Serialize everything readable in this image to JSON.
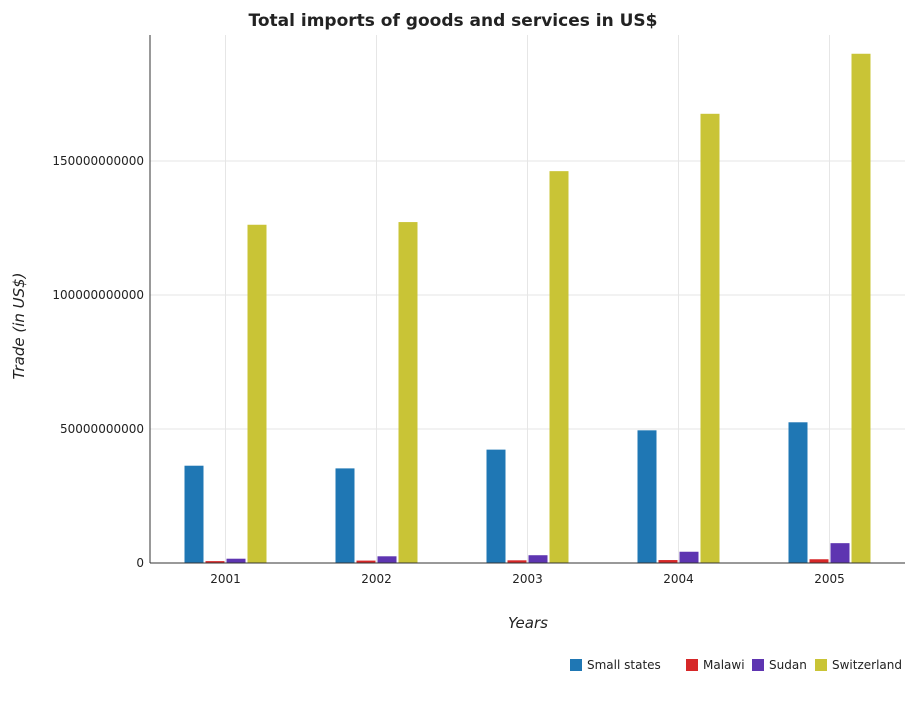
{
  "chart_data": {
    "type": "bar",
    "title": "Total imports of goods and services in US$",
    "xlabel": "Years",
    "ylabel": "Trade (in US$)",
    "categories": [
      "2001",
      "2002",
      "2003",
      "2004",
      "2005"
    ],
    "ylim": [
      0,
      197000000000
    ],
    "yticks": [
      0,
      50000000000,
      100000000000,
      150000000000
    ],
    "ytick_labels": [
      "0",
      "50000000000",
      "100000000000",
      "150000000000"
    ],
    "grid": true,
    "legend_position": "bottom-right",
    "series": [
      {
        "name": "Small states",
        "color": "#1f77b4",
        "values": [
          36300000000,
          35300000000,
          42300000000,
          49500000000,
          52500000000
        ]
      },
      {
        "name": "Malawi",
        "color": "#d62728",
        "values": [
          700000000,
          900000000,
          1000000000,
          1100000000,
          1400000000
        ]
      },
      {
        "name": "Sudan",
        "color": "#5e35b1",
        "values": [
          1600000000,
          2500000000,
          2900000000,
          4200000000,
          7400000000
        ]
      },
      {
        "name": "Switzerland",
        "color": "#c9c436",
        "values": [
          126200000000,
          127200000000,
          146200000000,
          167600000000,
          190000000000
        ]
      }
    ]
  }
}
